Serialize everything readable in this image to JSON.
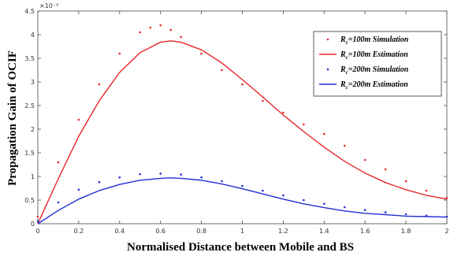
{
  "chart_data": {
    "type": "scatter",
    "title": "",
    "xlabel": "Normalised Distance between Mobile and BS",
    "ylabel": "Propagation Gain of OCIF",
    "y_exponent_label": "×10⁻⁹",
    "xlim": [
      0,
      2
    ],
    "ylim": [
      0,
      4.5
    ],
    "x_ticks": [
      "0",
      "0.2",
      "0.4",
      "0.6",
      "0.8",
      "1",
      "1.2",
      "1.4",
      "1.6",
      "1.8",
      "2"
    ],
    "y_ticks": [
      "0",
      "0.5",
      "1",
      "1.5",
      "2",
      "2.5",
      "3",
      "3.5",
      "4",
      "4.5"
    ],
    "grid": false,
    "legend_position": "top-right",
    "series": [
      {
        "name": "R_c=100m Simulation",
        "legend_main": "R",
        "legend_sub": "c",
        "legend_rest": "=100m Simulation",
        "kind": "dotted",
        "color": "#e8262a",
        "x": [
          0,
          0.1,
          0.2,
          0.3,
          0.4,
          0.5,
          0.55,
          0.6,
          0.65,
          0.7,
          0.8,
          0.9,
          1.0,
          1.1,
          1.2,
          1.3,
          1.4,
          1.5,
          1.6,
          1.7,
          1.8,
          1.9,
          2.0
        ],
        "y": [
          0.15,
          1.3,
          2.2,
          2.95,
          3.6,
          4.05,
          4.15,
          4.2,
          4.1,
          3.95,
          3.6,
          3.25,
          2.95,
          2.6,
          2.35,
          2.1,
          1.9,
          1.65,
          1.35,
          1.15,
          0.9,
          0.7,
          0.55
        ]
      },
      {
        "name": "R_c=100m Estimation",
        "legend_main": "R",
        "legend_sub": "c",
        "legend_rest": "=100m Estimation",
        "kind": "line",
        "color": "#e8262a",
        "x": [
          0,
          0.1,
          0.2,
          0.3,
          0.4,
          0.5,
          0.6,
          0.65,
          0.7,
          0.8,
          0.9,
          1.0,
          1.1,
          1.2,
          1.3,
          1.4,
          1.5,
          1.6,
          1.7,
          1.8,
          1.9,
          2.0
        ],
        "y": [
          0,
          0.95,
          1.85,
          2.6,
          3.2,
          3.62,
          3.84,
          3.87,
          3.84,
          3.68,
          3.4,
          3.05,
          2.68,
          2.3,
          1.95,
          1.62,
          1.32,
          1.07,
          0.87,
          0.72,
          0.6,
          0.52
        ]
      },
      {
        "name": "R_c=200m Simulation",
        "legend_main": "R",
        "legend_sub": "c",
        "legend_rest": "=200m Simulation",
        "kind": "dotted",
        "color": "#1f2fd6",
        "x": [
          0,
          0.1,
          0.2,
          0.3,
          0.4,
          0.5,
          0.6,
          0.7,
          0.8,
          0.9,
          1.0,
          1.1,
          1.2,
          1.3,
          1.4,
          1.5,
          1.6,
          1.7,
          1.8,
          1.9,
          2.0
        ],
        "y": [
          0.05,
          0.45,
          0.72,
          0.88,
          0.98,
          1.05,
          1.06,
          1.04,
          0.98,
          0.9,
          0.8,
          0.7,
          0.6,
          0.5,
          0.42,
          0.35,
          0.29,
          0.24,
          0.2,
          0.17,
          0.15
        ]
      },
      {
        "name": "R_c=200m Estimation",
        "legend_main": "R",
        "legend_sub": "c",
        "legend_rest": "=200m Estimation",
        "kind": "line",
        "color": "#1f2fd6",
        "x": [
          0,
          0.1,
          0.2,
          0.3,
          0.4,
          0.5,
          0.6,
          0.65,
          0.7,
          0.8,
          0.9,
          1.0,
          1.1,
          1.2,
          1.3,
          1.4,
          1.5,
          1.6,
          1.7,
          1.8,
          1.9,
          2.0
        ],
        "y": [
          0,
          0.28,
          0.52,
          0.7,
          0.83,
          0.92,
          0.96,
          0.97,
          0.96,
          0.92,
          0.84,
          0.74,
          0.63,
          0.52,
          0.42,
          0.34,
          0.27,
          0.22,
          0.19,
          0.16,
          0.15,
          0.14
        ]
      }
    ]
  }
}
